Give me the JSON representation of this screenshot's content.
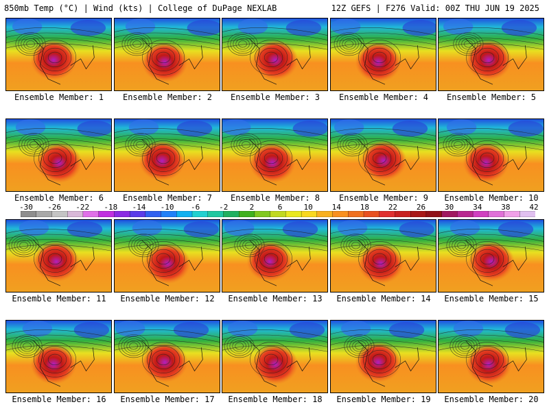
{
  "header": {
    "left_text": "850mb Temp (°C) | Wind (kts) | College of DuPage NEXLAB",
    "right_text": "12Z GEFS | F276 Valid: 00Z THU JUN 19 2025"
  },
  "colorbar": {
    "tick_labels": [
      "-30",
      "-26",
      "-22",
      "-18",
      "-14",
      "-10",
      "-6",
      "-2",
      "2",
      "6",
      "10",
      "14",
      "18",
      "22",
      "26",
      "30",
      "34",
      "38",
      "42"
    ],
    "colors": [
      "#8e8e8e",
      "#a8a8a8",
      "#c4c4c4",
      "#d8b8d8",
      "#e070e8",
      "#c030e0",
      "#8a2be2",
      "#5a3ce8",
      "#3060f0",
      "#2080f8",
      "#10b0f0",
      "#20d0d0",
      "#20c8a0",
      "#20b060",
      "#40b020",
      "#80c820",
      "#c0d820",
      "#e8e820",
      "#f8d820",
      "#f8b020",
      "#f89020",
      "#f07020",
      "#e85020",
      "#e03030",
      "#c82020",
      "#a81818",
      "#901018",
      "#a01860",
      "#b82890",
      "#d040c0",
      "#e070d8",
      "#f0a0e8",
      "#e0c0f0"
    ]
  },
  "panels": [
    {
      "label": "Ensemble Member: 1"
    },
    {
      "label": "Ensemble Member: 2"
    },
    {
      "label": "Ensemble Member: 3"
    },
    {
      "label": "Ensemble Member: 4"
    },
    {
      "label": "Ensemble Member: 5"
    },
    {
      "label": "Ensemble Member: 6"
    },
    {
      "label": "Ensemble Member: 7"
    },
    {
      "label": "Ensemble Member: 8"
    },
    {
      "label": "Ensemble Member: 9"
    },
    {
      "label": "Ensemble Member: 10"
    },
    {
      "label": "Ensemble Member: 11"
    },
    {
      "label": "Ensemble Member: 12"
    },
    {
      "label": "Ensemble Member: 13"
    },
    {
      "label": "Ensemble Member: 14"
    },
    {
      "label": "Ensemble Member: 15"
    },
    {
      "label": "Ensemble Member: 16"
    },
    {
      "label": "Ensemble Member: 17"
    },
    {
      "label": "Ensemble Member: 18"
    },
    {
      "label": "Ensemble Member: 19"
    },
    {
      "label": "Ensemble Member: 20"
    }
  ]
}
